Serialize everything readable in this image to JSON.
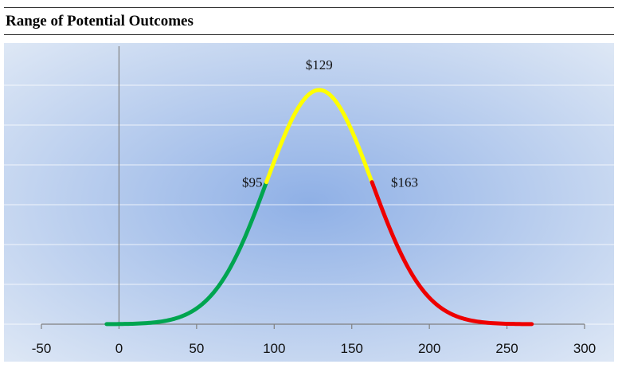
{
  "title": "Range of Potential Outcomes",
  "chart_data": {
    "type": "line",
    "title": "Range of Potential Outcomes",
    "xlabel": "",
    "ylabel": "",
    "xlim": [
      -50,
      300
    ],
    "x_ticks": [
      "-50",
      "0",
      "50",
      "100",
      "150",
      "200",
      "250",
      "300"
    ],
    "x_tick_values": [
      -50,
      0,
      50,
      100,
      150,
      200,
      250,
      300
    ],
    "grid": "horizontal",
    "distribution": {
      "shape": "normal",
      "mean": 129,
      "sd": 34,
      "x_range": [
        -8,
        266
      ]
    },
    "segments": [
      {
        "from": -8,
        "to": 95,
        "color": "#00a550"
      },
      {
        "from": 95,
        "to": 163,
        "color": "#ffff00"
      },
      {
        "from": 163,
        "to": 266,
        "color": "#ee0000"
      }
    ],
    "annotations": [
      {
        "x": 95,
        "text": "$95"
      },
      {
        "x": 129,
        "text": "$129"
      },
      {
        "x": 163,
        "text": "$163"
      }
    ],
    "colors": {
      "background_center": "#8fb0e6",
      "background_edge": "#dde7f5",
      "gridline": "#ffffff",
      "axis": "#808080"
    }
  }
}
